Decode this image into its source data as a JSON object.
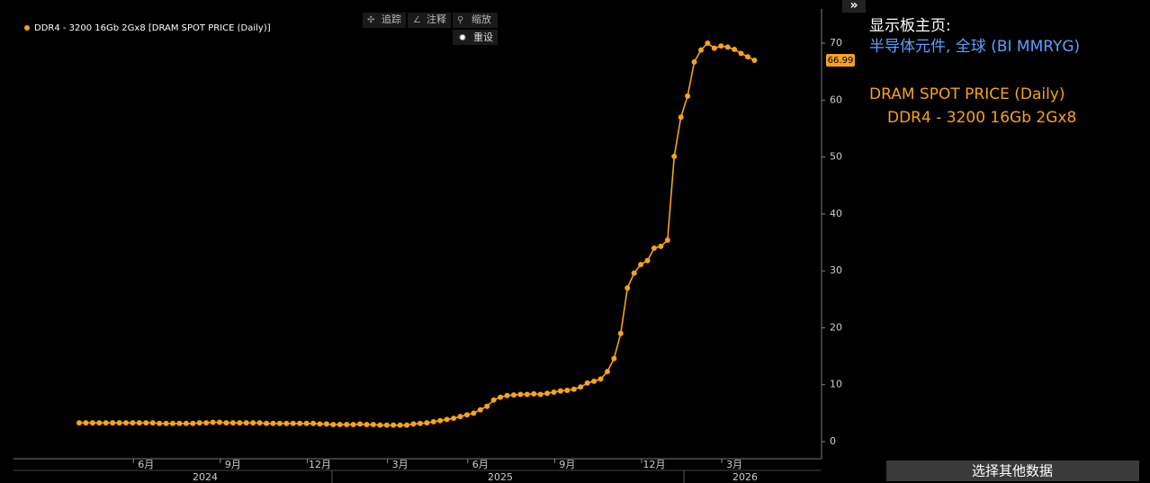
{
  "chart_data": {
    "type": "line",
    "categories": [
      null,
      null,
      null,
      null,
      null,
      null,
      null,
      null,
      null,
      null,
      "6月",
      null,
      null,
      null,
      null,
      null,
      null,
      null,
      null,
      null,
      null,
      null,
      null,
      "9月",
      null,
      null,
      null,
      null,
      null,
      null,
      null,
      null,
      null,
      null,
      null,
      null,
      "12月",
      null,
      null,
      null,
      null,
      null,
      null,
      null,
      null,
      null,
      null,
      null,
      "3月",
      null,
      null,
      null,
      null,
      null,
      null,
      null,
      null,
      null,
      null,
      null,
      "6月",
      null,
      null,
      null,
      null,
      null,
      null,
      null,
      null,
      null,
      null,
      null,
      null,
      "9月",
      null,
      null,
      null,
      null,
      null,
      null,
      null,
      null,
      null,
      null,
      null,
      null,
      "12月",
      null,
      null,
      null,
      null,
      null,
      null,
      null,
      null,
      null,
      null,
      null,
      "3月",
      null,
      null,
      null
    ],
    "years": [
      "2024",
      "2025",
      "2026"
    ],
    "series": [
      {
        "name": "DDR4 - 3200 16Gb 2Gx8 [DRAM SPOT PRICE (Daily)]",
        "color": "#f7a21b",
        "values": [
          3.3,
          3.3,
          3.3,
          3.3,
          3.3,
          3.3,
          3.3,
          3.3,
          3.3,
          3.3,
          3.3,
          3.3,
          3.2,
          3.2,
          3.2,
          3.2,
          3.2,
          3.2,
          3.3,
          3.3,
          3.4,
          3.4,
          3.3,
          3.3,
          3.3,
          3.3,
          3.3,
          3.3,
          3.2,
          3.2,
          3.2,
          3.2,
          3.2,
          3.2,
          3.2,
          3.2,
          3.1,
          3.1,
          3.0,
          3.0,
          3.0,
          3.0,
          3.1,
          3.0,
          3.0,
          2.9,
          2.9,
          2.9,
          2.9,
          2.9,
          3.1,
          3.2,
          3.3,
          3.5,
          3.7,
          3.9,
          4.1,
          4.4,
          4.7,
          5.0,
          5.6,
          6.2,
          7.3,
          7.8,
          8.1,
          8.2,
          8.3,
          8.3,
          8.4,
          8.3,
          8.5,
          8.7,
          8.9,
          9.0,
          9.2,
          9.6,
          10.3,
          10.6,
          11.0,
          12.3,
          14.6,
          19.0,
          27.0,
          29.6,
          31.1,
          31.8,
          34.0,
          34.3,
          35.4,
          50.1,
          57.0,
          60.7,
          66.7,
          68.8,
          70.0,
          69.1,
          69.5,
          69.3,
          68.9,
          68.2,
          67.6,
          66.99
        ]
      }
    ],
    "ylim": [
      -3,
      76
    ],
    "yticks": [
      0,
      10,
      20,
      30,
      40,
      50,
      60,
      70
    ],
    "legend": "top-left"
  },
  "toolbar": {
    "track": "追踪",
    "annotate": "注释",
    "zoom": "缩放",
    "reset": "重设"
  },
  "panel": {
    "expand": "»",
    "home": "显示板主页:",
    "source": "半导体元件, 全球 (BI MMRYG)",
    "title": "DRAM SPOT PRICE (Daily)",
    "subtitle": "DDR4 - 3200 16Gb 2Gx8",
    "button": "选择其他数据"
  }
}
